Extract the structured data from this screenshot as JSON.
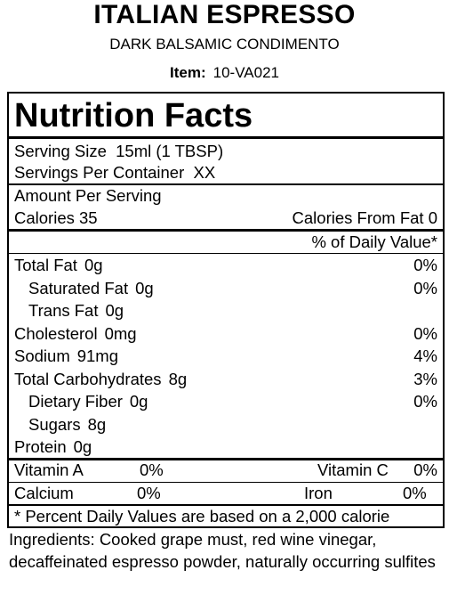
{
  "header": {
    "title": "ITALIAN ESPRESSO",
    "subtitle": "DARK BALSAMIC CONDIMENTO",
    "item_label": "Item:",
    "item_value": "10-VA021"
  },
  "label": {
    "title": "Nutrition Facts",
    "serving_size": "Serving Size  15ml (1 TBSP)",
    "servings": "Servings Per Container  XX",
    "amount": "Amount Per Serving",
    "calories": "Calories 35",
    "calories_fat": "Calories From Fat 0",
    "dv_header": "% of Daily Value*",
    "nutrients": [
      {
        "name": "Total Fat",
        "amount": "0g",
        "dv": "0%"
      },
      {
        "name": "Saturated Fat",
        "amount": "0g",
        "dv": "0%"
      },
      {
        "name": "Trans Fat",
        "amount": "0g"
      },
      {
        "name": "Cholesterol",
        "amount": "0mg",
        "dv": "0%"
      },
      {
        "name": "Sodium",
        "amount": "91mg",
        "dv": "4%"
      },
      {
        "name": "Total Carbohydrates",
        "amount": "8g",
        "dv": "3%"
      },
      {
        "name": "Dietary Fiber",
        "amount": "0g",
        "dv": "0%"
      },
      {
        "name": "Sugars",
        "amount": "8g"
      },
      {
        "name": "Protein",
        "amount": "0g"
      }
    ],
    "vitamins": [
      {
        "name": "Vitamin A",
        "dv": "0%"
      },
      {
        "name": "Vitamin C",
        "dv": "0%"
      },
      {
        "name": "Calcium",
        "dv": "0%"
      },
      {
        "name": "Iron",
        "dv": "0%"
      }
    ],
    "footnote": "* Percent Daily Values are based on a 2,000 calorie"
  },
  "ingredients": "Ingredients: Cooked grape must, red wine vinegar, decaffeinated espresso powder, naturally occurring sulfites"
}
